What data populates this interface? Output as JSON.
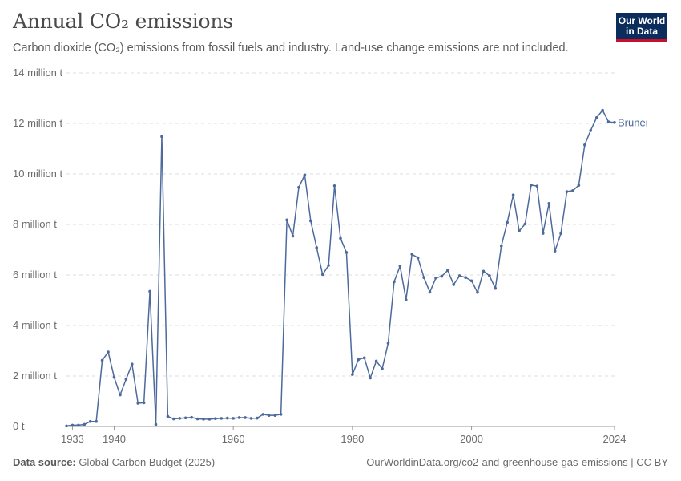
{
  "header": {
    "title": "Annual CO₂ emissions",
    "subtitle": "Carbon dioxide (CO₂) emissions from fossil fuels and industry. Land-use change emissions are not included."
  },
  "logo": {
    "line1": "Our World",
    "line2": "in Data"
  },
  "footer": {
    "source_label": "Data source:",
    "source_value": "Global Carbon Budget (2025)",
    "url": "OurWorldinData.org/co2-and-greenhouse-gas-emissions | CC BY"
  },
  "colors": {
    "series": "#4c6a9c",
    "grid": "#dddddd",
    "axis": "#999999"
  },
  "chart_data": {
    "type": "line",
    "title": "Annual CO₂ emissions",
    "xlabel": "",
    "ylabel": "",
    "xlim": [
      1932,
      2024
    ],
    "ylim": [
      0,
      14000000
    ],
    "y_ticks": [
      {
        "value": 0,
        "label": "0 t"
      },
      {
        "value": 2000000,
        "label": "2 million t"
      },
      {
        "value": 4000000,
        "label": "4 million t"
      },
      {
        "value": 6000000,
        "label": "6 million t"
      },
      {
        "value": 8000000,
        "label": "8 million t"
      },
      {
        "value": 10000000,
        "label": "10 million t"
      },
      {
        "value": 12000000,
        "label": "12 million t"
      },
      {
        "value": 14000000,
        "label": "14 million t"
      }
    ],
    "x_ticks": [
      {
        "value": 1933,
        "label": "1933"
      },
      {
        "value": 1940,
        "label": "1940"
      },
      {
        "value": 1960,
        "label": "1960"
      },
      {
        "value": 1980,
        "label": "1980"
      },
      {
        "value": 2000,
        "label": "2000"
      },
      {
        "value": 2024,
        "label": "2024"
      }
    ],
    "grid": true,
    "legend": "end-of-line label",
    "series": [
      {
        "name": "Brunei",
        "x": [
          1932,
          1933,
          1934,
          1935,
          1936,
          1937,
          1938,
          1939,
          1940,
          1941,
          1942,
          1943,
          1944,
          1945,
          1946,
          1947,
          1948,
          1949,
          1950,
          1951,
          1952,
          1953,
          1954,
          1955,
          1956,
          1957,
          1958,
          1959,
          1960,
          1961,
          1962,
          1963,
          1964,
          1965,
          1966,
          1967,
          1968,
          1969,
          1970,
          1971,
          1972,
          1973,
          1974,
          1975,
          1976,
          1977,
          1978,
          1979,
          1980,
          1981,
          1982,
          1983,
          1984,
          1985,
          1986,
          1987,
          1988,
          1989,
          1990,
          1991,
          1992,
          1993,
          1994,
          1995,
          1996,
          1997,
          1998,
          1999,
          2000,
          2001,
          2002,
          2003,
          2004,
          2005,
          2006,
          2007,
          2008,
          2009,
          2010,
          2011,
          2012,
          2013,
          2014,
          2015,
          2016,
          2017,
          2018,
          2019,
          2020,
          2021,
          2022,
          2023,
          2024
        ],
        "values": [
          20000,
          50000,
          50000,
          80000,
          200000,
          200000,
          2620000,
          2950000,
          1950000,
          1250000,
          1870000,
          2470000,
          920000,
          940000,
          5350000,
          80000,
          11480000,
          400000,
          300000,
          320000,
          340000,
          360000,
          300000,
          290000,
          290000,
          310000,
          320000,
          330000,
          320000,
          350000,
          350000,
          320000,
          330000,
          480000,
          440000,
          440000,
          480000,
          8180000,
          7540000,
          9470000,
          9960000,
          8140000,
          7080000,
          6020000,
          6380000,
          9530000,
          7450000,
          6890000,
          2060000,
          2650000,
          2720000,
          1920000,
          2590000,
          2290000,
          3300000,
          5730000,
          6350000,
          5020000,
          6820000,
          6680000,
          5900000,
          5320000,
          5880000,
          5950000,
          6180000,
          5620000,
          5970000,
          5900000,
          5770000,
          5310000,
          6150000,
          5970000,
          5470000,
          7150000,
          8080000,
          9170000,
          7740000,
          8020000,
          9560000,
          9520000,
          7650000,
          8830000,
          6950000,
          7640000,
          9300000,
          9340000,
          9550000,
          11150000,
          11720000,
          12230000,
          12520000,
          12060000,
          12040000
        ]
      }
    ]
  }
}
